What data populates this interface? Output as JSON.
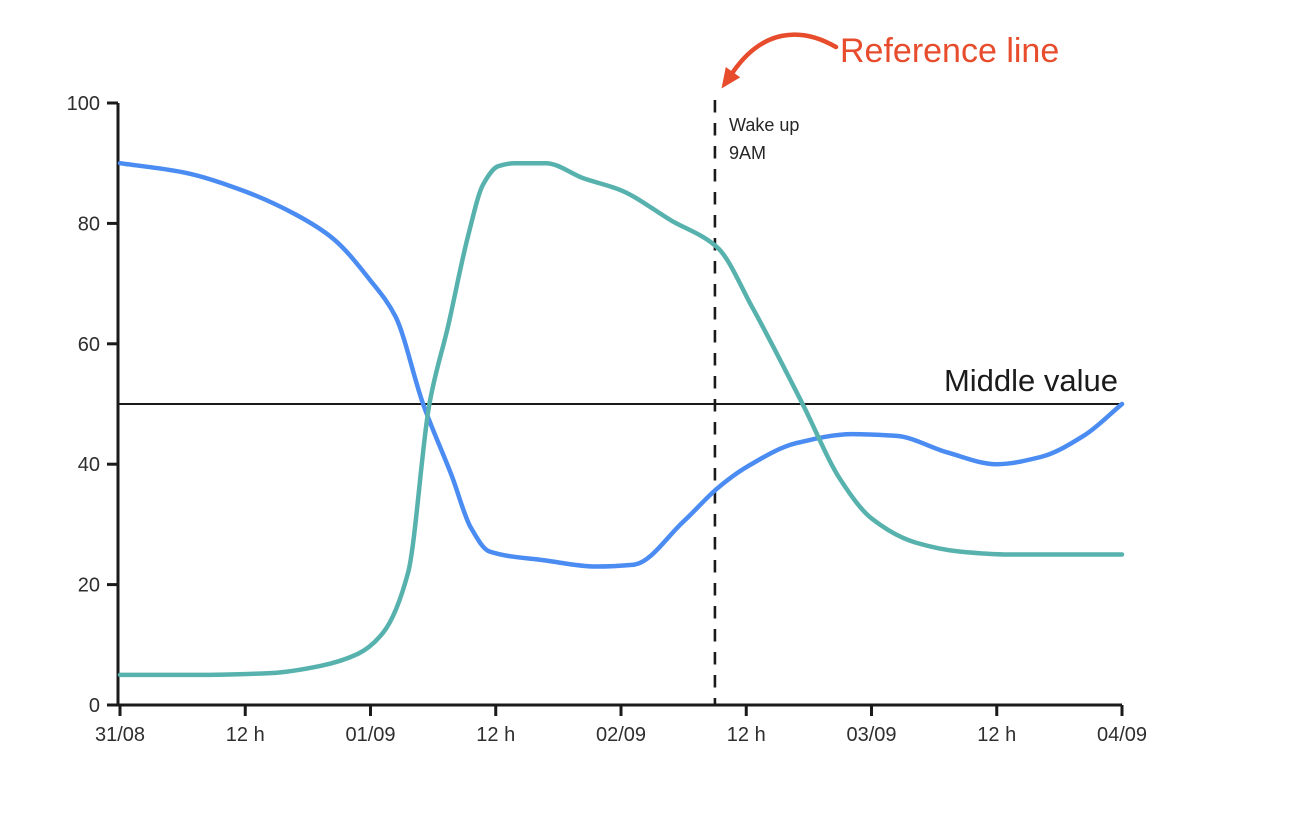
{
  "chart_data": {
    "type": "line",
    "title": "",
    "grid": "off",
    "legend": "none",
    "x_axis": {
      "description": "time from 31/08 to 04/09 in half-day steps",
      "tick_labels": [
        "31/08",
        "12 h",
        "01/09",
        "12 h",
        "02/09",
        "12 h",
        "03/09",
        "12 h",
        "04/09"
      ],
      "tick_positions": [
        0,
        1,
        2,
        3,
        4,
        5,
        6,
        7,
        8
      ],
      "range": [
        0,
        8
      ]
    },
    "y_axis": {
      "tick_values": [
        0,
        20,
        40,
        60,
        80,
        100
      ],
      "tick_labels": [
        "0",
        "20",
        "40",
        "60",
        "80",
        "100"
      ],
      "range": [
        0,
        100
      ]
    },
    "series": [
      {
        "name": "series-blue",
        "color": "#4b8cf2",
        "points": [
          [
            0,
            90
          ],
          [
            0.5,
            88.5
          ],
          [
            1,
            85.3
          ],
          [
            1.4,
            81.5
          ],
          [
            1.7,
            77.5
          ],
          [
            2,
            70.5
          ],
          [
            2.2,
            64.5
          ],
          [
            2.42,
            50
          ],
          [
            2.65,
            38
          ],
          [
            2.8,
            29.5
          ],
          [
            2.95,
            25.5
          ],
          [
            3.4,
            24
          ],
          [
            3.8,
            23
          ],
          [
            4.1,
            23.3
          ],
          [
            4.5,
            30.5
          ],
          [
            4.77,
            36
          ],
          [
            5,
            39.5
          ],
          [
            5.4,
            43.5
          ],
          [
            5.85,
            45
          ],
          [
            6.2,
            44.7
          ],
          [
            6.6,
            42
          ],
          [
            7,
            40
          ],
          [
            7.35,
            41.2
          ],
          [
            7.7,
            44.8
          ],
          [
            8,
            50
          ]
        ]
      },
      {
        "name": "series-teal",
        "color": "#57b2ae",
        "points": [
          [
            0,
            5
          ],
          [
            0.6,
            5
          ],
          [
            1.2,
            5.3
          ],
          [
            1.6,
            6.5
          ],
          [
            1.9,
            8.5
          ],
          [
            2.1,
            12
          ],
          [
            2.3,
            22
          ],
          [
            2.47,
            50
          ],
          [
            2.62,
            63
          ],
          [
            2.78,
            78
          ],
          [
            2.9,
            86.5
          ],
          [
            3.02,
            89.5
          ],
          [
            3.15,
            90
          ],
          [
            3.4,
            90
          ],
          [
            3.7,
            87.5
          ],
          [
            4,
            85.5
          ],
          [
            4.4,
            80.5
          ],
          [
            4.77,
            76
          ],
          [
            5.05,
            66
          ],
          [
            5.45,
            50
          ],
          [
            5.75,
            37.5
          ],
          [
            6,
            31
          ],
          [
            6.35,
            27
          ],
          [
            6.7,
            25.5
          ],
          [
            7.1,
            25
          ],
          [
            8,
            25
          ]
        ]
      }
    ],
    "reference_lines": [
      {
        "orientation": "horizontal",
        "value": 50,
        "style": "solid",
        "label": "Middle value"
      },
      {
        "orientation": "vertical",
        "value": 4.75,
        "style": "dashed",
        "label_lines": [
          "Wake up",
          "9AM"
        ]
      }
    ]
  },
  "annotations": {
    "callout": "Reference line"
  },
  "colors": {
    "axis": "#1a1a1a",
    "tick_label": "#2e2e2e",
    "series_blue": "#4b8cf2",
    "series_teal": "#57b2ae",
    "callout_red": "#e74c2c",
    "background": "#ffffff"
  }
}
